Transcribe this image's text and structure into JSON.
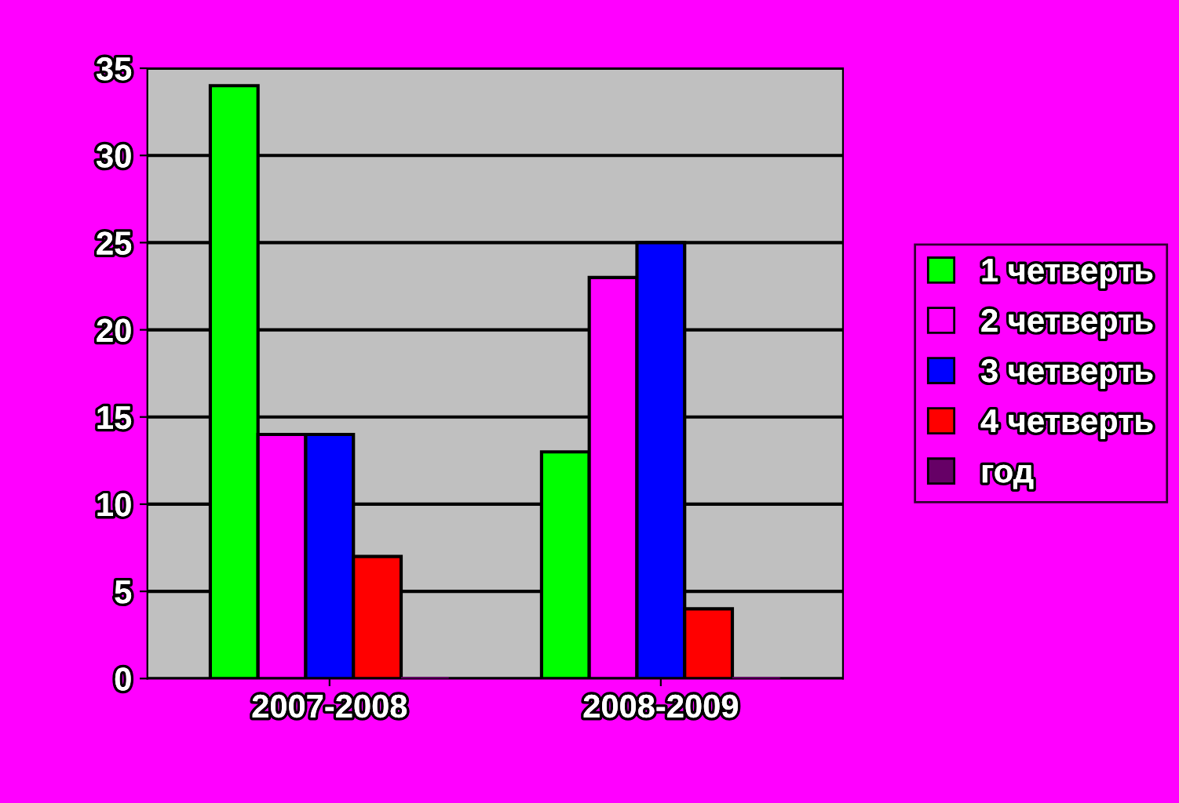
{
  "chart_data": {
    "type": "bar",
    "categories": [
      "2007-2008",
      "2008-2009"
    ],
    "series": [
      {
        "name": "1 четверть",
        "color": "#00ff00",
        "values": [
          34,
          13
        ]
      },
      {
        "name": "2 четверть",
        "color": "#ff00ff",
        "values": [
          14,
          23
        ]
      },
      {
        "name": "3 четверть",
        "color": "#0000ff",
        "values": [
          14,
          25
        ]
      },
      {
        "name": "4 четверть",
        "color": "#ff0000",
        "values": [
          7,
          4
        ]
      },
      {
        "name": "год",
        "color": "#660066",
        "values": [
          0,
          0
        ]
      }
    ],
    "ylim": [
      0,
      35
    ],
    "yticks": [
      0,
      5,
      10,
      15,
      20,
      25,
      30,
      35
    ],
    "grid": "y",
    "legend": "right"
  }
}
